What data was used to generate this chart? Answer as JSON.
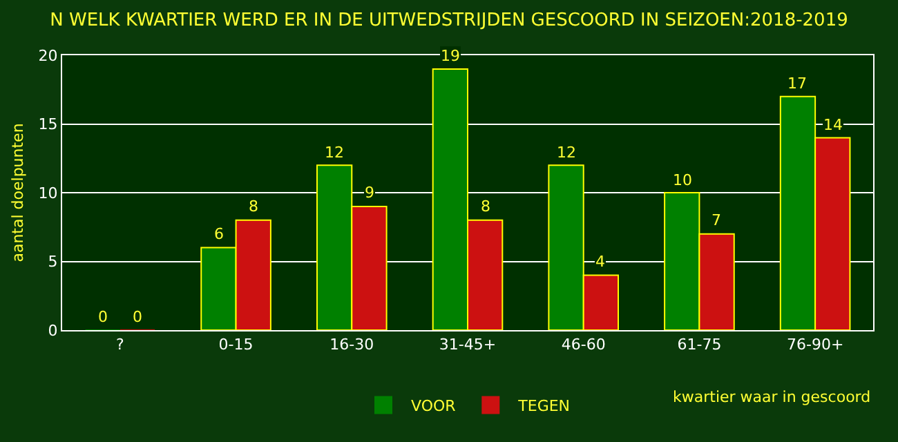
{
  "chart_data": {
    "type": "bar",
    "title": "N WELK KWARTIER WERD ER IN DE UITWEDSTRIJDEN GESCOORD IN SEIZOEN:2018-2019",
    "xlabel": "kwartier waar in gescoord",
    "ylabel": "aantal doelpunten",
    "categories": [
      "?",
      "0-15",
      "16-30",
      "31-45+",
      "46-60",
      "61-75",
      "76-90+"
    ],
    "series": [
      {
        "name": "VOOR",
        "color": "#008000",
        "values": [
          0,
          6,
          12,
          19,
          12,
          10,
          17
        ]
      },
      {
        "name": "TEGEN",
        "color": "#cc1111",
        "values": [
          0,
          8,
          9,
          8,
          4,
          7,
          14
        ]
      }
    ],
    "ylim": [
      0,
      20
    ],
    "yticks": [
      0,
      5,
      10,
      15,
      20
    ],
    "grid": "y",
    "legend": "bottom",
    "data_labels": true
  }
}
